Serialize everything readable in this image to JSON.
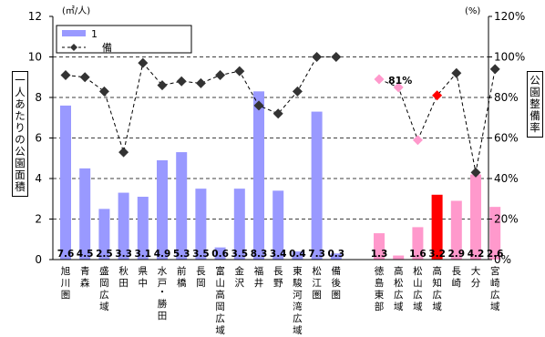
{
  "chart_data": {
    "type": "bar",
    "left_unit": "(㎡/人)",
    "right_unit": "(%)",
    "y_left_label": "一人あたりの公園面積",
    "y_right_label": "公園整備率",
    "ylim": [
      0,
      12
    ],
    "y2lim": [
      0,
      120
    ],
    "y_ticks": [
      "0",
      "2",
      "4",
      "6",
      "8",
      "10",
      "12"
    ],
    "y2_ticks": [
      "0%",
      "20%",
      "40%",
      "60%",
      "80%",
      "100%",
      "120%"
    ],
    "legend": {
      "bar_label": "1",
      "line_label": "備",
      "position": "top-left"
    },
    "categories": [
      {
        "label": "旭川圏",
        "area": 7.6,
        "area_text": "7.6",
        "rate": 91,
        "group": 1
      },
      {
        "label": "青森",
        "area": 4.5,
        "area_text": "4.5",
        "rate": 90,
        "group": 1
      },
      {
        "label": "盛岡広域",
        "area": 2.5,
        "area_text": "2.5",
        "rate": 83,
        "group": 1
      },
      {
        "label": "秋田",
        "area": 3.3,
        "area_text": "3.3",
        "rate": 53,
        "group": 1
      },
      {
        "label": "県中",
        "area": 3.1,
        "area_text": "3.1",
        "rate": 97,
        "group": 1
      },
      {
        "label": "水戸・勝田",
        "area": 4.9,
        "area_text": "4.9",
        "rate": 86,
        "group": 1
      },
      {
        "label": "前橋",
        "area": 5.3,
        "area_text": "5.3",
        "rate": 88,
        "group": 1
      },
      {
        "label": "長岡",
        "area": 3.5,
        "area_text": "3.5",
        "rate": 87,
        "group": 1
      },
      {
        "label": "富山高岡広域",
        "area": 0.6,
        "area_text": "0.6",
        "rate": 91,
        "group": 1
      },
      {
        "label": "金沢",
        "area": 3.5,
        "area_text": "3.5",
        "rate": 93,
        "group": 1
      },
      {
        "label": "福井",
        "area": 8.3,
        "area_text": "8.3",
        "rate": 76,
        "group": 1
      },
      {
        "label": "長野",
        "area": 3.4,
        "area_text": "3.4",
        "rate": 72,
        "group": 1
      },
      {
        "label": "東駿河湾広域",
        "area": 0.4,
        "area_text": "0.4",
        "rate": 83,
        "group": 1
      },
      {
        "label": "松江圏",
        "area": 7.3,
        "area_text": "7.3",
        "rate": 100,
        "group": 1
      },
      {
        "label": "備後圏",
        "area": 0.3,
        "area_text": "0.3",
        "rate": 100,
        "group": 1
      },
      {
        "label": "徳島東部",
        "area": 1.3,
        "area_text": "1.3",
        "rate": 89,
        "group": 2
      },
      {
        "label": "高松広域",
        "area": 0.2,
        "area_text": "",
        "rate": 85,
        "group": 2
      },
      {
        "label": "松山広域",
        "area": 1.6,
        "area_text": "1.6",
        "rate": 59,
        "group": 2
      },
      {
        "label": "高知広域",
        "area": 3.2,
        "area_text": "3.2",
        "rate": 81,
        "group": 2,
        "highlight": true
      },
      {
        "label": "長崎",
        "area": 2.9,
        "area_text": "2.9",
        "rate": 92,
        "group": 2
      },
      {
        "label": "大分",
        "area": 4.2,
        "area_text": "4.2",
        "rate": 43,
        "group": 2
      },
      {
        "label": "宮崎広域",
        "area": 2.6,
        "area_text": "2.6",
        "rate": 94,
        "group": 2
      }
    ],
    "callout": "81%",
    "colors": {
      "bar": "#9999ff",
      "bar_group2": "#ff99cc",
      "highlight": "#ff0000",
      "marker": "#333333",
      "marker_group2": "#ff99cc",
      "line": "#000000"
    },
    "grid": true
  }
}
